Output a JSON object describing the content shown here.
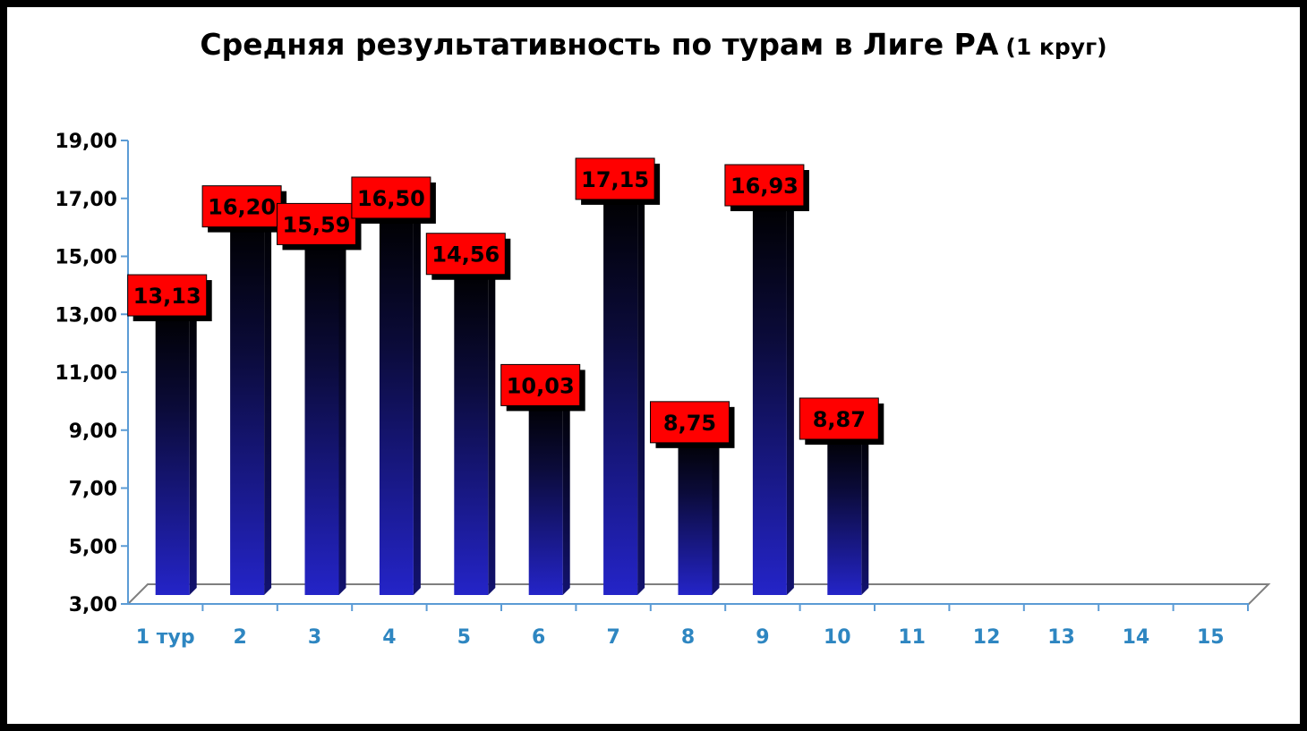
{
  "chart_data": {
    "type": "bar",
    "title": "Средняя результативность по турам в Лиге РА",
    "subtitle": "(1 круг)",
    "categories": [
      "1 тур",
      "2",
      "3",
      "4",
      "5",
      "6",
      "7",
      "8",
      "9",
      "10",
      "11",
      "12",
      "13",
      "14",
      "15"
    ],
    "values": [
      13.13,
      16.2,
      15.59,
      16.5,
      14.56,
      10.03,
      17.15,
      8.75,
      16.93,
      8.87,
      null,
      null,
      null,
      null,
      null
    ],
    "data_labels": [
      "13,13",
      "16,20",
      "15,59",
      "16,50",
      "14,56",
      "10,03",
      "17,15",
      "8,75",
      "16,93",
      "8,87",
      "",
      "",
      "",
      "",
      ""
    ],
    "yticks": [
      "3,00",
      "5,00",
      "7,00",
      "9,00",
      "11,00",
      "13,00",
      "15,00",
      "17,00",
      "19,00"
    ],
    "ylim": [
      3,
      19
    ],
    "xlabel": "",
    "ylabel": "",
    "grid": false,
    "legend": "none",
    "colors": {
      "bar_top": "#000000",
      "bar_bottom": "#2424c8",
      "label_fill": "#ff0000",
      "x_tick_text": "#2e86c1",
      "axis": "#5b9bd5"
    }
  }
}
